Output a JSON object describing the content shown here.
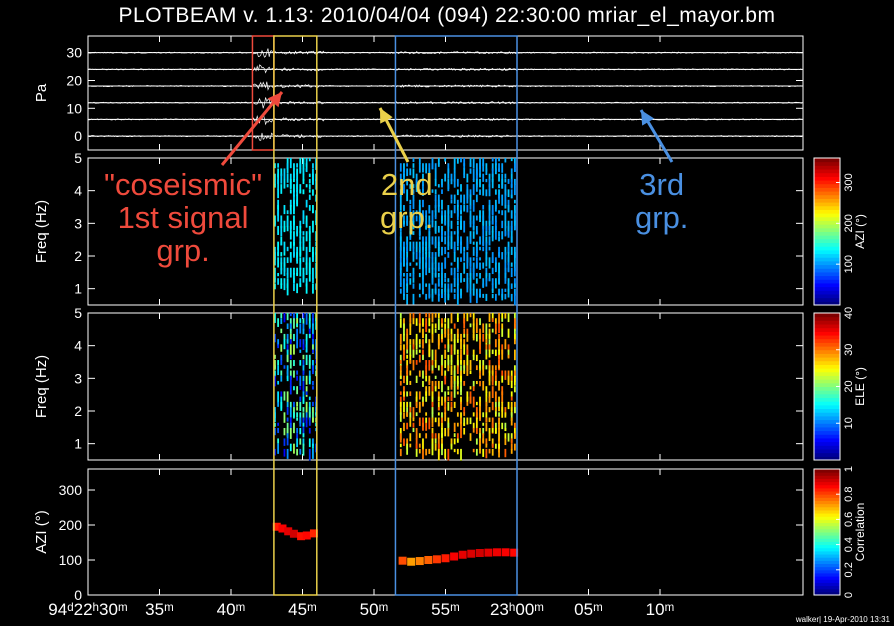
{
  "window": {
    "title": "PLOTBEAM v. 1.13: 2010/04/04 (094) 22:30:00 mriar_el_mayor.bm",
    "footer_stamp": "walker| 19-Apr-2010 13:31"
  },
  "annotations": [
    {
      "lines": [
        "\"coseismic\"",
        "1st signal",
        "grp."
      ],
      "color": "#ef4a3c",
      "box": {
        "t0": 41.5,
        "t1": 43.0,
        "panel": "waveform"
      }
    },
    {
      "lines": [
        "2nd",
        "grp."
      ],
      "color": "#ead04a",
      "box": {
        "t0": 43.0,
        "t1": 46.0,
        "panel": "all-lower"
      }
    },
    {
      "lines": [
        "3rd",
        "grp."
      ],
      "color": "#4a90e2",
      "box": {
        "t0": 51.5,
        "t1": 60.0,
        "panel": "all"
      }
    }
  ],
  "chart_data": {
    "type": "multi-panel",
    "x_axis": {
      "range_minutes": [
        30,
        80
      ],
      "ticks": [
        {
          "at": 30,
          "label": "94ᵈ22ʰ30ᵐ"
        },
        {
          "at": 35,
          "label": "35ᵐ"
        },
        {
          "at": 40,
          "label": "40ᵐ"
        },
        {
          "at": 45,
          "label": "45ᵐ"
        },
        {
          "at": 50,
          "label": "50ᵐ"
        },
        {
          "at": 55,
          "label": "55ᵐ"
        },
        {
          "at": 60,
          "label": "23ʰ00ᵐ"
        },
        {
          "at": 65,
          "label": "05ᵐ"
        },
        {
          "at": 70,
          "label": "10ᵐ"
        }
      ]
    },
    "panels": [
      {
        "name": "waveform",
        "type": "line",
        "ylabel": "Pa",
        "ylim": [
          -5,
          36
        ],
        "yticks": [
          0,
          10,
          20,
          30
        ],
        "trace_offsets": [
          0,
          6,
          12,
          18,
          24,
          30
        ]
      },
      {
        "name": "freq-azi",
        "type": "heatmap",
        "ylabel": "Freq (Hz)",
        "ylim": [
          0.5,
          5
        ],
        "yticks": [
          1,
          2,
          3,
          4,
          5
        ],
        "colorbar": {
          "label": "AZI (°)",
          "range": [
            0,
            360
          ],
          "ticks": [
            100,
            200,
            300
          ]
        },
        "groups": [
          {
            "t0": 42.9,
            "t1": 46.0,
            "value_range": [
              120,
              135
            ],
            "f_min": 1.1
          },
          {
            "t0": 51.7,
            "t1": 59.9,
            "value_range": [
              95,
              115
            ],
            "f_min": 0.7
          }
        ]
      },
      {
        "name": "freq-ele",
        "type": "heatmap",
        "ylabel": "Freq (Hz)",
        "ylim": [
          0.5,
          5
        ],
        "yticks": [
          1,
          2,
          3,
          4,
          5
        ],
        "colorbar": {
          "label": "ELE (°)",
          "range": [
            0,
            40
          ],
          "ticks": [
            10,
            20,
            30,
            40
          ]
        },
        "groups": [
          {
            "t0": 42.9,
            "t1": 46.0,
            "value_range": [
              5,
              22
            ],
            "f_min": 0.8
          },
          {
            "t0": 51.7,
            "t1": 59.9,
            "value_range": [
              22,
              32
            ],
            "f_min": 0.7
          }
        ]
      },
      {
        "name": "azimuth",
        "type": "scatter",
        "ylabel": "AZI (°)",
        "ylim": [
          0,
          360
        ],
        "yticks": [
          0,
          100,
          200,
          300
        ],
        "colorbar": {
          "label": "Correlation",
          "range": [
            0,
            1
          ],
          "ticks": [
            0,
            0.2,
            0.4,
            0.6,
            0.8,
            1
          ]
        },
        "points": [
          {
            "t": 43.2,
            "azi": 195,
            "corr": 0.85
          },
          {
            "t": 43.6,
            "azi": 190,
            "corr": 0.88
          },
          {
            "t": 44.0,
            "azi": 182,
            "corr": 0.9
          },
          {
            "t": 44.4,
            "azi": 175,
            "corr": 0.92
          },
          {
            "t": 44.9,
            "azi": 168,
            "corr": 0.86
          },
          {
            "t": 45.3,
            "azi": 170,
            "corr": 0.87
          },
          {
            "t": 45.8,
            "azi": 176,
            "corr": 0.84
          },
          {
            "t": 52.0,
            "azi": 98,
            "corr": 0.8
          },
          {
            "t": 52.6,
            "azi": 95,
            "corr": 0.72
          },
          {
            "t": 53.2,
            "azi": 97,
            "corr": 0.75
          },
          {
            "t": 53.8,
            "azi": 100,
            "corr": 0.78
          },
          {
            "t": 54.4,
            "azi": 102,
            "corr": 0.82
          },
          {
            "t": 55.0,
            "azi": 105,
            "corr": 0.85
          },
          {
            "t": 55.6,
            "azi": 110,
            "corr": 0.88
          },
          {
            "t": 56.2,
            "azi": 115,
            "corr": 0.9
          },
          {
            "t": 56.8,
            "azi": 118,
            "corr": 0.91
          },
          {
            "t": 57.4,
            "azi": 120,
            "corr": 0.92
          },
          {
            "t": 58.0,
            "azi": 121,
            "corr": 0.9
          },
          {
            "t": 58.6,
            "azi": 122,
            "corr": 0.89
          },
          {
            "t": 59.2,
            "azi": 122,
            "corr": 0.88
          },
          {
            "t": 59.8,
            "azi": 121,
            "corr": 0.87
          }
        ]
      }
    ]
  }
}
